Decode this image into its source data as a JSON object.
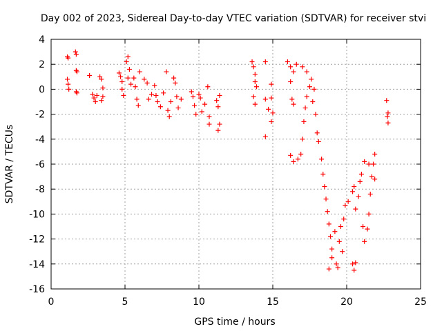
{
  "chart_data": {
    "type": "scatter",
    "title": "Day 002 of 2023, Sidereal Day-to-day VTEC variation (SDTVAR) for receiver stvi",
    "xlabel": "GPS time / hours",
    "ylabel": "SDTVAR / TECUs",
    "xlim": [
      0,
      25
    ],
    "ylim": [
      -16,
      4
    ],
    "x_ticks": [
      0,
      5,
      10,
      15,
      20,
      25
    ],
    "y_ticks": [
      -16,
      -14,
      -12,
      -10,
      -8,
      -6,
      -4,
      -2,
      0,
      2,
      4
    ],
    "grid": true,
    "marker": "+",
    "series": [
      {
        "name": "SDTVAR",
        "color": "#ff0000",
        "points": [
          [
            1.1,
            2.6
          ],
          [
            1.15,
            2.5
          ],
          [
            1.1,
            0.8
          ],
          [
            1.15,
            0.4
          ],
          [
            1.2,
            0.0
          ],
          [
            1.65,
            3.0
          ],
          [
            1.7,
            2.8
          ],
          [
            1.7,
            1.5
          ],
          [
            1.75,
            1.4
          ],
          [
            1.7,
            -0.2
          ],
          [
            1.75,
            -0.3
          ],
          [
            2.6,
            1.1
          ],
          [
            2.8,
            -0.4
          ],
          [
            2.9,
            -0.7
          ],
          [
            3.0,
            -1.0
          ],
          [
            3.1,
            -0.5
          ],
          [
            3.3,
            1.0
          ],
          [
            3.4,
            0.8
          ],
          [
            3.5,
            -0.6
          ],
          [
            3.5,
            0.1
          ],
          [
            3.4,
            -0.9
          ],
          [
            4.6,
            1.3
          ],
          [
            4.7,
            1.0
          ],
          [
            4.8,
            0.6
          ],
          [
            4.8,
            0.0
          ],
          [
            4.9,
            -0.5
          ],
          [
            5.1,
            2.2
          ],
          [
            5.2,
            2.6
          ],
          [
            5.3,
            1.6
          ],
          [
            5.2,
            0.9
          ],
          [
            5.4,
            0.4
          ],
          [
            5.6,
            0.9
          ],
          [
            5.7,
            0.2
          ],
          [
            5.8,
            -0.8
          ],
          [
            5.9,
            -1.3
          ],
          [
            6.0,
            1.4
          ],
          [
            6.3,
            0.8
          ],
          [
            6.5,
            0.5
          ],
          [
            6.6,
            -0.8
          ],
          [
            6.8,
            -0.4
          ],
          [
            7.0,
            0.3
          ],
          [
            7.1,
            -0.5
          ],
          [
            7.2,
            -1.0
          ],
          [
            7.4,
            -1.4
          ],
          [
            7.6,
            -0.3
          ],
          [
            7.8,
            1.4
          ],
          [
            7.9,
            -1.7
          ],
          [
            8.0,
            -2.2
          ],
          [
            8.1,
            -1.0
          ],
          [
            8.3,
            0.9
          ],
          [
            8.4,
            0.5
          ],
          [
            8.5,
            -0.6
          ],
          [
            8.6,
            -1.5
          ],
          [
            8.8,
            -0.8
          ],
          [
            9.5,
            -0.2
          ],
          [
            9.6,
            -0.6
          ],
          [
            9.7,
            -1.3
          ],
          [
            9.8,
            -2.0
          ],
          [
            10.0,
            -0.4
          ],
          [
            10.1,
            -0.7
          ],
          [
            10.2,
            -1.8
          ],
          [
            10.4,
            -1.2
          ],
          [
            10.6,
            0.2
          ],
          [
            10.7,
            -2.2
          ],
          [
            10.7,
            -2.8
          ],
          [
            11.2,
            -0.9
          ],
          [
            11.3,
            -1.4
          ],
          [
            11.3,
            -3.3
          ],
          [
            11.4,
            -2.8
          ],
          [
            11.4,
            -0.5
          ],
          [
            13.6,
            2.2
          ],
          [
            13.7,
            1.8
          ],
          [
            13.8,
            1.2
          ],
          [
            13.8,
            0.6
          ],
          [
            13.9,
            0.2
          ],
          [
            13.7,
            -0.6
          ],
          [
            13.8,
            -1.2
          ],
          [
            14.5,
            2.2
          ],
          [
            14.5,
            -0.8
          ],
          [
            14.5,
            -3.8
          ],
          [
            14.7,
            -1.6
          ],
          [
            14.9,
            0.4
          ],
          [
            14.9,
            -0.7
          ],
          [
            15.0,
            -1.9
          ],
          [
            14.9,
            -2.6
          ],
          [
            16.0,
            2.2
          ],
          [
            16.2,
            1.8
          ],
          [
            16.4,
            1.4
          ],
          [
            16.2,
            0.6
          ],
          [
            16.3,
            -0.8
          ],
          [
            16.4,
            -1.2
          ],
          [
            16.2,
            -5.3
          ],
          [
            16.4,
            -5.8
          ],
          [
            16.7,
            -5.6
          ],
          [
            16.9,
            -5.2
          ],
          [
            17.0,
            -4.0
          ],
          [
            17.1,
            -2.6
          ],
          [
            17.2,
            -1.5
          ],
          [
            17.3,
            -0.6
          ],
          [
            17.5,
            0.2
          ],
          [
            16.6,
            2.0
          ],
          [
            17.0,
            1.8
          ],
          [
            17.3,
            1.4
          ],
          [
            17.6,
            0.8
          ],
          [
            17.8,
            0.0
          ],
          [
            17.7,
            -1.0
          ],
          [
            17.9,
            -2.0
          ],
          [
            18.0,
            -3.5
          ],
          [
            18.1,
            -4.2
          ],
          [
            18.3,
            -5.6
          ],
          [
            18.4,
            -6.8
          ],
          [
            18.5,
            -7.8
          ],
          [
            18.6,
            -8.8
          ],
          [
            18.7,
            -9.8
          ],
          [
            18.8,
            -10.8
          ],
          [
            18.9,
            -11.8
          ],
          [
            19.0,
            -12.8
          ],
          [
            19.0,
            -13.5
          ],
          [
            19.3,
            -14.0
          ],
          [
            19.4,
            -14.3
          ],
          [
            18.8,
            -14.4
          ],
          [
            19.2,
            -11.4
          ],
          [
            19.5,
            -12.2
          ],
          [
            19.7,
            -13.0
          ],
          [
            19.6,
            -11.0
          ],
          [
            19.8,
            -10.4
          ],
          [
            19.9,
            -9.3
          ],
          [
            20.1,
            -9.0
          ],
          [
            20.4,
            -8.2
          ],
          [
            20.5,
            -7.8
          ],
          [
            20.6,
            -9.6
          ],
          [
            20.8,
            -8.6
          ],
          [
            20.9,
            -7.4
          ],
          [
            21.0,
            -6.8
          ],
          [
            21.2,
            -5.8
          ],
          [
            21.1,
            -11.0
          ],
          [
            21.2,
            -12.2
          ],
          [
            21.4,
            -11.2
          ],
          [
            21.5,
            -10.0
          ],
          [
            21.6,
            -8.4
          ],
          [
            21.7,
            -7.0
          ],
          [
            21.8,
            -6.0
          ],
          [
            21.9,
            -5.2
          ],
          [
            21.9,
            -7.2
          ],
          [
            21.5,
            -6.0
          ],
          [
            20.4,
            -14.0
          ],
          [
            20.5,
            -14.5
          ],
          [
            20.6,
            -13.9
          ],
          [
            22.7,
            -0.9
          ],
          [
            22.8,
            -1.9
          ],
          [
            22.75,
            -2.2
          ],
          [
            22.8,
            -2.7
          ]
        ]
      }
    ]
  }
}
